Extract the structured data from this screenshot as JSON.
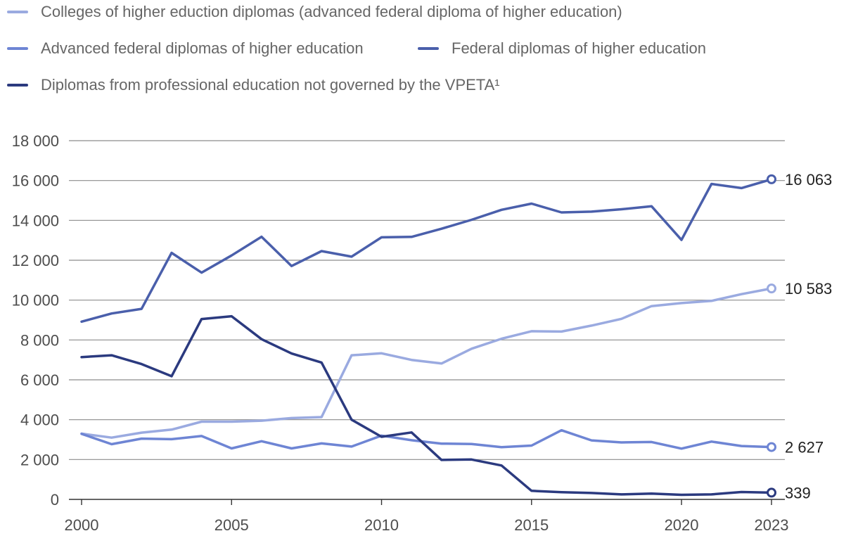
{
  "chart_data": {
    "type": "line",
    "title": "",
    "xlabel": "",
    "ylabel": "",
    "x": [
      2000,
      2001,
      2002,
      2003,
      2004,
      2005,
      2006,
      2007,
      2008,
      2009,
      2010,
      2011,
      2012,
      2013,
      2014,
      2015,
      2016,
      2017,
      2018,
      2019,
      2020,
      2021,
      2022,
      2023
    ],
    "x_ticks": [
      "2000",
      "2005",
      "2010",
      "2015",
      "2020",
      "2023"
    ],
    "y_ticks": [
      "0",
      "2 000",
      "4 000",
      "6 000",
      "8 000",
      "10 000",
      "12 000",
      "14 000",
      "16 000",
      "18 000"
    ],
    "ylim": [
      0,
      18000
    ],
    "grid": "horizontal",
    "legend_position": "top",
    "series": [
      {
        "name": "Colleges of higher eduction diplomas (advanced federal diploma of higher education)",
        "color": "#9aaae0",
        "values": [
          3300,
          3100,
          3350,
          3500,
          3900,
          3900,
          3950,
          4080,
          4130,
          7230,
          7330,
          7000,
          6820,
          7560,
          8060,
          8440,
          8420,
          8720,
          9060,
          9700,
          9850,
          9960,
          10300,
          10583
        ],
        "end_label": "10 583"
      },
      {
        "name": "Advanced federal diplomas of higher education",
        "color": "#6e85d4",
        "values": [
          3290,
          2770,
          3050,
          3020,
          3180,
          2560,
          2920,
          2560,
          2810,
          2650,
          3200,
          2970,
          2800,
          2780,
          2620,
          2700,
          3470,
          2960,
          2860,
          2880,
          2550,
          2900,
          2680,
          2627
        ],
        "end_label": "2 627"
      },
      {
        "name": "Federal diplomas of higher education",
        "color": "#4a5fab",
        "values": [
          8920,
          9330,
          9560,
          12370,
          11380,
          12240,
          13180,
          11710,
          12460,
          12180,
          13150,
          13170,
          13580,
          14030,
          14530,
          14840,
          14400,
          14440,
          14560,
          14710,
          13020,
          15830,
          15620,
          16063
        ],
        "end_label": "16 063"
      },
      {
        "name": "Diplomas from professional education not governed by the VPETA¹",
        "color": "#2b3a7f",
        "values": [
          7140,
          7230,
          6790,
          6180,
          9050,
          9190,
          8040,
          7320,
          6870,
          4000,
          3140,
          3360,
          1980,
          2000,
          1700,
          430,
          360,
          320,
          250,
          290,
          230,
          250,
          370,
          339
        ],
        "end_label": "339"
      }
    ]
  }
}
